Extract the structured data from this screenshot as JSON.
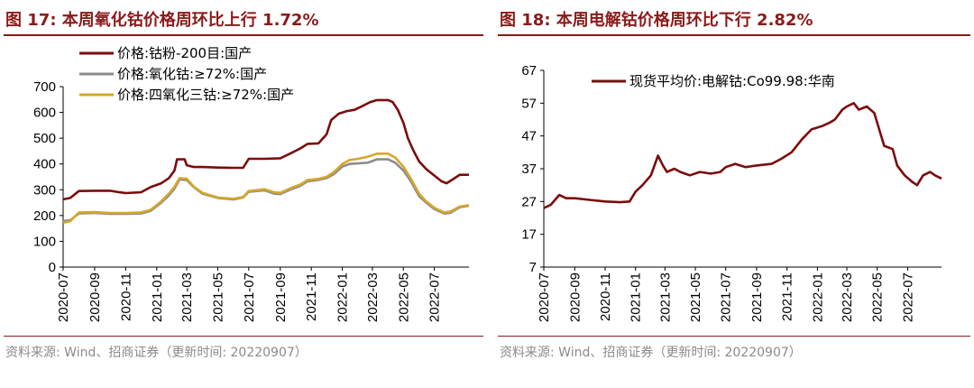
{
  "left": {
    "title": "图 17:  本周氧化钴价格周环比上行 1.72%",
    "source": "资料来源:  Wind、招商证券（更新时间:  20220907）"
  },
  "right": {
    "title": "图 18:  本周电解钴价格周环比下行 2.82%",
    "source": "资料来源:  Wind、招商证券（更新时间:  20220907）"
  },
  "chart_data": [
    {
      "type": "line",
      "title": "",
      "xlabel": "",
      "ylabel": "",
      "x_ticks": [
        "2020-07",
        "2020-09",
        "2020-11",
        "2021-01",
        "2021-03",
        "2021-05",
        "2021-07",
        "2021-09",
        "2021-11",
        "2022-01",
        "2022-03",
        "2022-05",
        "2022-07"
      ],
      "ylim": [
        0,
        700
      ],
      "y_ticks": [
        0,
        100,
        200,
        300,
        400,
        500,
        600,
        700
      ],
      "legend_position": "top-center",
      "grid": false,
      "series": [
        {
          "name": "价格:钴粉-200目:国产",
          "color": "#7b0c0c",
          "points": [
            [
              "2020-07-01",
              263
            ],
            [
              "2020-07-15",
              268
            ],
            [
              "2020-08-01",
              295
            ],
            [
              "2020-09-01",
              296
            ],
            [
              "2020-10-01",
              296
            ],
            [
              "2020-10-20",
              290
            ],
            [
              "2020-11-01",
              287
            ],
            [
              "2020-12-01",
              290
            ],
            [
              "2020-12-20",
              310
            ],
            [
              "2021-01-10",
              325
            ],
            [
              "2021-01-25",
              345
            ],
            [
              "2021-02-05",
              375
            ],
            [
              "2021-02-10",
              418
            ],
            [
              "2021-02-25",
              418
            ],
            [
              "2021-03-01",
              395
            ],
            [
              "2021-03-15",
              388
            ],
            [
              "2021-04-01",
              388
            ],
            [
              "2021-05-01",
              386
            ],
            [
              "2021-06-01",
              385
            ],
            [
              "2021-06-20",
              385
            ],
            [
              "2021-07-01",
              420
            ],
            [
              "2021-08-01",
              420
            ],
            [
              "2021-09-01",
              422
            ],
            [
              "2021-09-20",
              440
            ],
            [
              "2021-10-10",
              460
            ],
            [
              "2021-10-25",
              478
            ],
            [
              "2021-11-15",
              480
            ],
            [
              "2021-12-01",
              515
            ],
            [
              "2021-12-10",
              570
            ],
            [
              "2021-12-25",
              595
            ],
            [
              "2022-01-10",
              605
            ],
            [
              "2022-01-25",
              610
            ],
            [
              "2022-02-10",
              625
            ],
            [
              "2022-02-25",
              640
            ],
            [
              "2022-03-10",
              648
            ],
            [
              "2022-04-01",
              648
            ],
            [
              "2022-04-10",
              640
            ],
            [
              "2022-04-20",
              610
            ],
            [
              "2022-05-01",
              560
            ],
            [
              "2022-05-10",
              500
            ],
            [
              "2022-05-20",
              455
            ],
            [
              "2022-06-01",
              410
            ],
            [
              "2022-06-15",
              380
            ],
            [
              "2022-07-01",
              355
            ],
            [
              "2022-07-15",
              333
            ],
            [
              "2022-07-25",
              325
            ],
            [
              "2022-08-10",
              345
            ],
            [
              "2022-08-20",
              358
            ],
            [
              "2022-09-07",
              358
            ]
          ]
        },
        {
          "name": "价格:氧化钴:≥72%:国产",
          "color": "#8c8c8c",
          "points": [
            [
              "2020-07-01",
              178
            ],
            [
              "2020-07-15",
              182
            ],
            [
              "2020-08-01",
              208
            ],
            [
              "2020-09-01",
              210
            ],
            [
              "2020-10-01",
              207
            ],
            [
              "2020-11-01",
              207
            ],
            [
              "2020-12-01",
              208
            ],
            [
              "2020-12-20",
              218
            ],
            [
              "2021-01-10",
              250
            ],
            [
              "2021-01-25",
              278
            ],
            [
              "2021-02-05",
              305
            ],
            [
              "2021-02-15",
              340
            ],
            [
              "2021-03-01",
              338
            ],
            [
              "2021-03-15",
              310
            ],
            [
              "2021-04-01",
              285
            ],
            [
              "2021-05-01",
              268
            ],
            [
              "2021-06-01",
              262
            ],
            [
              "2021-06-20",
              270
            ],
            [
              "2021-07-01",
              292
            ],
            [
              "2021-08-01",
              298
            ],
            [
              "2021-08-20",
              285
            ],
            [
              "2021-09-01",
              283
            ],
            [
              "2021-09-20",
              300
            ],
            [
              "2021-10-10",
              315
            ],
            [
              "2021-10-25",
              333
            ],
            [
              "2021-11-15",
              338
            ],
            [
              "2021-12-01",
              345
            ],
            [
              "2021-12-15",
              360
            ],
            [
              "2022-01-01",
              390
            ],
            [
              "2022-01-15",
              400
            ],
            [
              "2022-02-01",
              402
            ],
            [
              "2022-02-20",
              405
            ],
            [
              "2022-03-10",
              418
            ],
            [
              "2022-04-01",
              418
            ],
            [
              "2022-04-15",
              405
            ],
            [
              "2022-05-01",
              375
            ],
            [
              "2022-05-15",
              335
            ],
            [
              "2022-06-01",
              275
            ],
            [
              "2022-06-15",
              250
            ],
            [
              "2022-07-01",
              225
            ],
            [
              "2022-07-20",
              208
            ],
            [
              "2022-08-01",
              210
            ],
            [
              "2022-08-20",
              232
            ],
            [
              "2022-09-07",
              238
            ]
          ]
        },
        {
          "name": "价格:四氧化三钴:≥72%:国产",
          "color": "#d4a72c",
          "points": [
            [
              "2020-07-01",
              172
            ],
            [
              "2020-07-15",
              178
            ],
            [
              "2020-08-01",
              212
            ],
            [
              "2020-09-01",
              213
            ],
            [
              "2020-10-01",
              210
            ],
            [
              "2020-11-01",
              210
            ],
            [
              "2020-12-01",
              212
            ],
            [
              "2020-12-20",
              222
            ],
            [
              "2021-01-10",
              255
            ],
            [
              "2021-01-25",
              285
            ],
            [
              "2021-02-05",
              312
            ],
            [
              "2021-02-15",
              345
            ],
            [
              "2021-03-01",
              343
            ],
            [
              "2021-03-15",
              312
            ],
            [
              "2021-04-01",
              288
            ],
            [
              "2021-05-01",
              270
            ],
            [
              "2021-06-01",
              265
            ],
            [
              "2021-06-20",
              272
            ],
            [
              "2021-07-01",
              295
            ],
            [
              "2021-08-01",
              302
            ],
            [
              "2021-08-20",
              290
            ],
            [
              "2021-09-01",
              288
            ],
            [
              "2021-09-20",
              305
            ],
            [
              "2021-10-10",
              320
            ],
            [
              "2021-10-25",
              338
            ],
            [
              "2021-11-15",
              342
            ],
            [
              "2021-12-01",
              350
            ],
            [
              "2021-12-15",
              368
            ],
            [
              "2022-01-01",
              400
            ],
            [
              "2022-01-15",
              415
            ],
            [
              "2022-02-01",
              420
            ],
            [
              "2022-02-20",
              428
            ],
            [
              "2022-03-10",
              440
            ],
            [
              "2022-04-01",
              440
            ],
            [
              "2022-04-15",
              425
            ],
            [
              "2022-05-01",
              390
            ],
            [
              "2022-05-15",
              345
            ],
            [
              "2022-06-01",
              285
            ],
            [
              "2022-06-15",
              255
            ],
            [
              "2022-07-01",
              230
            ],
            [
              "2022-07-20",
              212
            ],
            [
              "2022-08-01",
              215
            ],
            [
              "2022-08-20",
              235
            ],
            [
              "2022-09-07",
              240
            ]
          ]
        }
      ]
    },
    {
      "type": "line",
      "title": "",
      "xlabel": "",
      "ylabel": "",
      "x_ticks": [
        "2020-07",
        "2020-09",
        "2020-11",
        "2021-01",
        "2021-03",
        "2021-05",
        "2021-07",
        "2021-09",
        "2021-11",
        "2022-01",
        "2022-03",
        "2022-05",
        "2022-07"
      ],
      "ylim": [
        7,
        67
      ],
      "y_ticks": [
        7,
        17,
        27,
        37,
        47,
        57,
        67
      ],
      "legend_position": "top-center",
      "grid": false,
      "series": [
        {
          "name": "现货平均价:电解钴:Co99.98:华南",
          "color": "#7b0c0c",
          "points": [
            [
              "2020-07-01",
              25
            ],
            [
              "2020-07-15",
              26
            ],
            [
              "2020-08-01",
              29
            ],
            [
              "2020-08-15",
              28
            ],
            [
              "2020-09-01",
              28
            ],
            [
              "2020-10-01",
              27.5
            ],
            [
              "2020-11-01",
              27
            ],
            [
              "2020-12-01",
              26.8
            ],
            [
              "2020-12-20",
              27
            ],
            [
              "2021-01-01",
              30
            ],
            [
              "2021-01-15",
              32
            ],
            [
              "2021-02-01",
              35
            ],
            [
              "2021-02-15",
              41
            ],
            [
              "2021-02-25",
              38
            ],
            [
              "2021-03-05",
              36
            ],
            [
              "2021-03-20",
              37
            ],
            [
              "2021-04-01",
              36
            ],
            [
              "2021-04-20",
              35
            ],
            [
              "2021-05-10",
              36
            ],
            [
              "2021-06-01",
              35.5
            ],
            [
              "2021-06-20",
              36
            ],
            [
              "2021-07-01",
              37.5
            ],
            [
              "2021-07-20",
              38.5
            ],
            [
              "2021-08-10",
              37.5
            ],
            [
              "2021-09-01",
              38
            ],
            [
              "2021-10-01",
              38.5
            ],
            [
              "2021-10-20",
              40
            ],
            [
              "2021-11-10",
              42
            ],
            [
              "2021-12-01",
              46
            ],
            [
              "2021-12-20",
              49
            ],
            [
              "2022-01-10",
              50
            ],
            [
              "2022-01-25",
              51
            ],
            [
              "2022-02-05",
              52
            ],
            [
              "2022-02-20",
              55
            ],
            [
              "2022-03-01",
              56
            ],
            [
              "2022-03-15",
              57
            ],
            [
              "2022-03-25",
              55
            ],
            [
              "2022-04-10",
              56
            ],
            [
              "2022-04-25",
              54
            ],
            [
              "2022-05-05",
              49
            ],
            [
              "2022-05-15",
              44
            ],
            [
              "2022-06-01",
              43
            ],
            [
              "2022-06-10",
              38
            ],
            [
              "2022-06-25",
              35
            ],
            [
              "2022-07-10",
              33
            ],
            [
              "2022-07-20",
              32
            ],
            [
              "2022-08-01",
              35
            ],
            [
              "2022-08-15",
              36
            ],
            [
              "2022-08-25",
              35
            ],
            [
              "2022-09-07",
              34
            ]
          ]
        }
      ]
    }
  ]
}
